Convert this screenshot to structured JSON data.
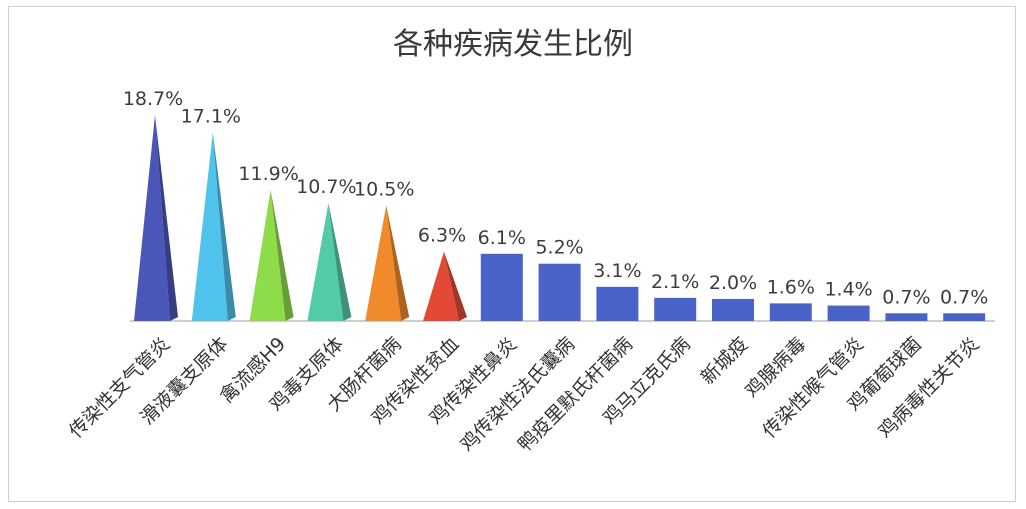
{
  "chart_data": {
    "type": "bar",
    "title": "各种疾病发生比例",
    "xlabel": "",
    "ylabel": "",
    "ylim": [
      0,
      20
    ],
    "grid": false,
    "legend": "none",
    "categories": [
      "传染性支气管炎",
      "滑液囊支原体",
      "禽流感H9",
      "鸡毒支原体",
      "大肠杆菌病",
      "鸡传染性贫血",
      "鸡传染性鼻炎",
      "鸡传染性法氏囊病",
      "鸭疫里默氏杆菌病",
      "鸡马立克氏病",
      "新城疫",
      "鸡腺病毒",
      "传染性喉气管炎",
      "鸡葡萄球菌",
      "鸡病毒性关节炎"
    ],
    "values": [
      18.7,
      17.1,
      11.9,
      10.7,
      10.5,
      6.3,
      6.1,
      5.2,
      3.1,
      2.1,
      2.0,
      1.6,
      1.4,
      0.7,
      0.7
    ],
    "value_labels": [
      "18.7%",
      "17.1%",
      "11.9%",
      "10.7%",
      "10.5%",
      "6.3%",
      "6.1%",
      "5.2%",
      "3.1%",
      "2.1%",
      "2.0%",
      "1.6%",
      "1.4%",
      "0.7%",
      "0.7%"
    ],
    "mark_shapes": [
      "pyramid",
      "pyramid",
      "pyramid",
      "pyramid",
      "pyramid",
      "pyramid",
      "bar",
      "bar",
      "bar",
      "bar",
      "bar",
      "bar",
      "bar",
      "bar",
      "bar"
    ],
    "colors": [
      "#4a56b8",
      "#4fc3ec",
      "#8fdc4a",
      "#52cca8",
      "#f08a2a",
      "#e24a36",
      "#4a63c9",
      "#4a63c9",
      "#4a63c9",
      "#4a63c9",
      "#4a63c9",
      "#4a63c9",
      "#4a63c9",
      "#4a63c9",
      "#4a63c9"
    ]
  }
}
